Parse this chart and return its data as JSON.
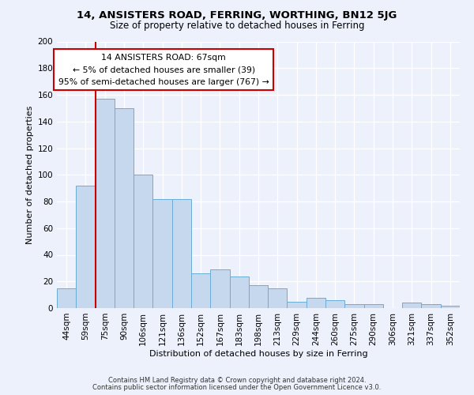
{
  "title1": "14, ANSISTERS ROAD, FERRING, WORTHING, BN12 5JG",
  "title2": "Size of property relative to detached houses in Ferring",
  "xlabel": "Distribution of detached houses by size in Ferring",
  "ylabel": "Number of detached properties",
  "bar_labels": [
    "44sqm",
    "59sqm",
    "75sqm",
    "90sqm",
    "106sqm",
    "121sqm",
    "136sqm",
    "152sqm",
    "167sqm",
    "183sqm",
    "198sqm",
    "213sqm",
    "229sqm",
    "244sqm",
    "260sqm",
    "275sqm",
    "290sqm",
    "306sqm",
    "321sqm",
    "337sqm",
    "352sqm"
  ],
  "bar_values": [
    15,
    92,
    157,
    150,
    100,
    82,
    82,
    26,
    29,
    24,
    17,
    15,
    5,
    8,
    6,
    3,
    3,
    0,
    4,
    3,
    2
  ],
  "bar_color": "#c5d8ed",
  "bar_edge_color": "#6aadd5",
  "annotation_line_color": "#cc0000",
  "annotation_box_text": "14 ANSISTERS ROAD: 67sqm\n← 5% of detached houses are smaller (39)\n95% of semi-detached houses are larger (767) →",
  "ylim": [
    0,
    200
  ],
  "yticks": [
    0,
    20,
    40,
    60,
    80,
    100,
    120,
    140,
    160,
    180,
    200
  ],
  "footer1": "Contains HM Land Registry data © Crown copyright and database right 2024.",
  "footer2": "Contains public sector information licensed under the Open Government Licence v3.0.",
  "bg_color": "#edf1fb",
  "plot_bg_color": "#edf1fb",
  "grid_color": "#ffffff"
}
